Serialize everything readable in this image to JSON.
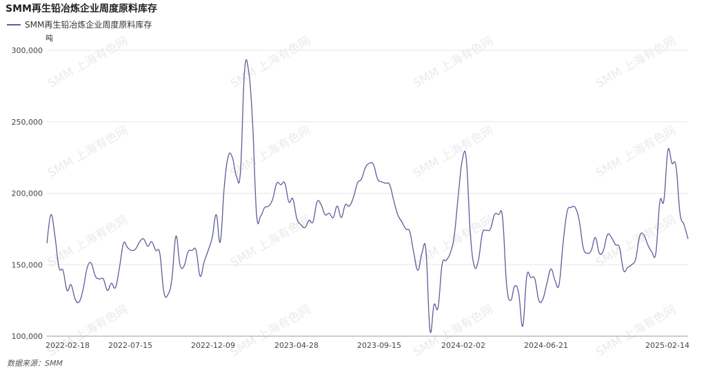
{
  "title": "SMM再生铅冶炼企业周度原料库存",
  "unit": "吨",
  "source": "数据来源：SMM",
  "watermark": "SMM 上海有色网",
  "colors": {
    "series": "#5b5b9a",
    "grid": "#e6e6e6",
    "axis": "#999999"
  },
  "chart_data": {
    "type": "line",
    "title": "SMM再生铅冶炼企业周度原料库存",
    "ylabel": "吨",
    "ylim": [
      100000,
      300000
    ],
    "y_ticks": [
      100000,
      150000,
      200000,
      250000,
      300000
    ],
    "y_tick_labels": [
      "100,000",
      "150,000",
      "200,000",
      "250,000",
      "300,000"
    ],
    "x_tick_labels": [
      "2022-02-18",
      "2022-07-15",
      "2022-12-09",
      "2023-04-28",
      "2023-09-15",
      "2024-02-02",
      "2024-06-21",
      "2025-02-14"
    ],
    "grid": true,
    "legend": "top-left",
    "series": [
      {
        "name": "SMM再生铅冶炼企业周度原料库存",
        "values": [
          165000,
          185000,
          170000,
          148000,
          146000,
          132000,
          136000,
          126000,
          124000,
          133000,
          148000,
          151000,
          142000,
          140000,
          140000,
          132000,
          137000,
          134000,
          148000,
          165000,
          162000,
          160000,
          161000,
          166000,
          168000,
          163000,
          166000,
          160000,
          158000,
          131000,
          129000,
          140000,
          170000,
          150000,
          149000,
          159000,
          160000,
          160000,
          142000,
          152000,
          160000,
          169000,
          185000,
          166000,
          205000,
          226000,
          225000,
          212000,
          215000,
          285000,
          286000,
          250000,
          185000,
          184000,
          190000,
          191000,
          196000,
          207000,
          206000,
          207000,
          194000,
          196000,
          182000,
          178000,
          176000,
          181000,
          180000,
          194000,
          192000,
          185000,
          186000,
          183000,
          191000,
          183000,
          192000,
          191000,
          197000,
          207000,
          210000,
          218000,
          221000,
          220000,
          210000,
          208000,
          207000,
          206000,
          195000,
          185000,
          180000,
          175000,
          173000,
          158000,
          146000,
          158000,
          160000,
          104000,
          122000,
          120000,
          150000,
          153000,
          158000,
          170000,
          198000,
          223000,
          224000,
          172000,
          149000,
          153000,
          172000,
          174000,
          175000,
          185000,
          185000,
          183000,
          136000,
          125000,
          135000,
          130000,
          107000,
          142000,
          141000,
          140000,
          125000,
          126000,
          137000,
          147000,
          139000,
          136000,
          165000,
          187000,
          190000,
          190000,
          181000,
          162000,
          158000,
          160000,
          169000,
          158000,
          160000,
          171000,
          169000,
          164000,
          162000,
          146000,
          148000,
          150000,
          154000,
          170000,
          171000,
          164000,
          159000,
          158000,
          194000,
          195000,
          230000,
          221000,
          219000,
          186000,
          178000,
          168000
        ]
      }
    ]
  }
}
